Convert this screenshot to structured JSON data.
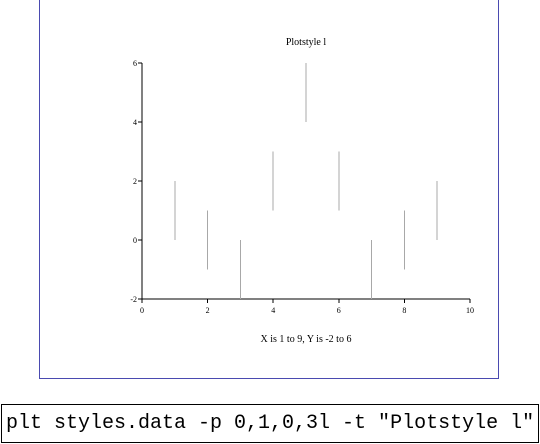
{
  "chart_data": {
    "type": "line",
    "title": "Plotstyle l",
    "xlabel": "X is 1 to 9,  Y is -2 to 6",
    "ylabel": "",
    "xlim": [
      0,
      10
    ],
    "ylim": [
      -2,
      6
    ],
    "x_ticks": [
      0,
      2,
      4,
      6,
      8,
      10
    ],
    "y_ticks": [
      -2,
      0,
      2,
      4,
      6
    ],
    "x_tick_labels": [
      "0",
      "2",
      "4",
      "6",
      "8",
      "10"
    ],
    "y_tick_labels": [
      "-2",
      "0",
      "2",
      "4",
      "6"
    ],
    "grid": false,
    "series": [
      {
        "segments": [
          {
            "x": 1,
            "y1": 0,
            "y2": 2
          },
          {
            "x": 2,
            "y1": -1,
            "y2": 1
          },
          {
            "x": 3,
            "y1": -2,
            "y2": 0
          },
          {
            "x": 4,
            "y1": 1,
            "y2": 3
          },
          {
            "x": 5,
            "y1": 4,
            "y2": 6
          },
          {
            "x": 6,
            "y1": 1,
            "y2": 3
          },
          {
            "x": 7,
            "y1": -2,
            "y2": 0
          },
          {
            "x": 8,
            "y1": -1,
            "y2": 1
          },
          {
            "x": 9,
            "y1": 0,
            "y2": 2
          }
        ]
      }
    ],
    "line_color": "#a8a8a8",
    "axis_color": "#000000"
  },
  "command": {
    "text": "plt styles.data -p 0,1,0,3l -t \"Plotstyle l\""
  }
}
